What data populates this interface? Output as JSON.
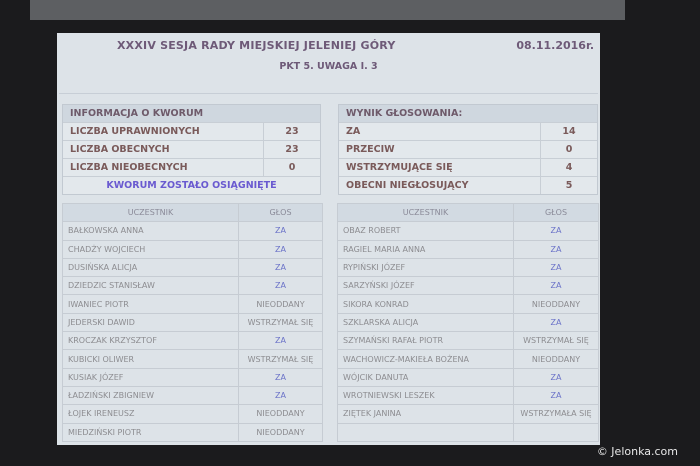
{
  "header": {
    "title": "XXXIV SESJA RADY MIEJSKIEJ JELENIEJ GÓRY",
    "date": "08.11.2016r.",
    "subtitle": "PKT 5. UWAGA I. 3"
  },
  "quorum": {
    "heading": "INFORMACJA O KWORUM",
    "rows": [
      {
        "label": "LICZBA UPRAWNIONYCH",
        "value": "23"
      },
      {
        "label": "LICZBA OBECNYCH",
        "value": "23"
      },
      {
        "label": "LICZBA NIEOBECNYCH",
        "value": "0"
      }
    ],
    "status": "KWORUM ZOSTAŁO OSIĄGNIĘTE"
  },
  "result": {
    "heading": "WYNIK GŁOSOWANIA:",
    "rows": [
      {
        "label": "ZA",
        "value": "14"
      },
      {
        "label": "PRZECIW",
        "value": "0"
      },
      {
        "label": "WSTRZYMUJĄCE SIĘ",
        "value": "4"
      },
      {
        "label": "OBECNI NIEGŁOSUJĄCY",
        "value": "5"
      }
    ]
  },
  "columns": {
    "participant": "UCZESTNIK",
    "vote": "GŁOS"
  },
  "left_table": [
    {
      "name": "BAŁKOWSKA ANNA",
      "vote": "ZA"
    },
    {
      "name": "CHADŻY WOJCIECH",
      "vote": "ZA"
    },
    {
      "name": "DUSIŃSKA ALICJA",
      "vote": "ZA"
    },
    {
      "name": "DZIEDZIC STANISŁAW",
      "vote": "ZA"
    },
    {
      "name": "IWANIEC PIOTR",
      "vote": "NIEODDANY"
    },
    {
      "name": "JEDERSKI DAWID",
      "vote": "WSTRZYMAŁ SIĘ"
    },
    {
      "name": "KROCZAK KRZYSZTOF",
      "vote": "ZA"
    },
    {
      "name": "KUBICKI OLIWER",
      "vote": "WSTRZYMAŁ SIĘ"
    },
    {
      "name": "KUSIAK JÓZEF",
      "vote": "ZA"
    },
    {
      "name": "ŁADZIŃSKI ZBIGNIEW",
      "vote": "ZA"
    },
    {
      "name": "ŁOJEK IRENEUSZ",
      "vote": "NIEODDANY"
    },
    {
      "name": "MIEDZIŃSKI PIOTR",
      "vote": "NIEODDANY"
    }
  ],
  "right_table": [
    {
      "name": "OBAZ ROBERT",
      "vote": "ZA"
    },
    {
      "name": "RAGIEL MARIA ANNA",
      "vote": "ZA"
    },
    {
      "name": "RYPIŃSKI JÓZEF",
      "vote": "ZA"
    },
    {
      "name": "SARZYŃSKI JÓZEF",
      "vote": "ZA"
    },
    {
      "name": "SIKORA KONRAD",
      "vote": "NIEODDANY"
    },
    {
      "name": "SZKLARSKA ALICJA",
      "vote": "ZA"
    },
    {
      "name": "SZYMAŃSKI RAFAŁ PIOTR",
      "vote": "WSTRZYMAŁ SIĘ"
    },
    {
      "name": "WACHOWICZ-MAKIEŁA BOŻENA",
      "vote": "NIEODDANY"
    },
    {
      "name": "WÓJCIK DANUTA",
      "vote": "ZA"
    },
    {
      "name": "WROTNIEWSKI LESZEK",
      "vote": "ZA"
    },
    {
      "name": "ZIĘTEK JANINA",
      "vote": "WSTRZYMAŁA SIĘ"
    }
  ],
  "watermark": "© Jelonka.com",
  "colors": {
    "screen": "#dde3e8",
    "vote_za": "#6a72c8",
    "quorum_status": "#6a5ad0"
  }
}
